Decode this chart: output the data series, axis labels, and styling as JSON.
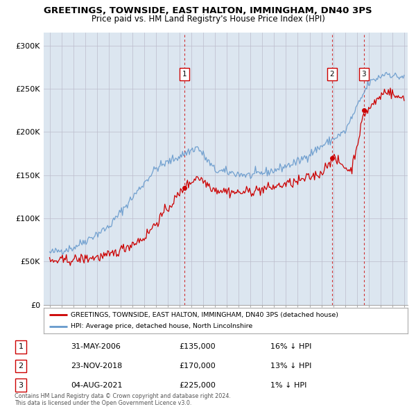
{
  "title": "GREETINGS, TOWNSIDE, EAST HALTON, IMMINGHAM, DN40 3PS",
  "subtitle": "Price paid vs. HM Land Registry's House Price Index (HPI)",
  "ylabel_ticks": [
    "£0",
    "£50K",
    "£100K",
    "£150K",
    "£200K",
    "£250K",
    "£300K"
  ],
  "ytick_vals": [
    0,
    50000,
    100000,
    150000,
    200000,
    250000,
    300000
  ],
  "ylim": [
    0,
    315000
  ],
  "xlim_start": 1994.5,
  "xlim_end": 2025.3,
  "transaction_color": "#cc0000",
  "hpi_color": "#6699cc",
  "vline_color": "#cc0000",
  "grid_color": "#bbbbcc",
  "bg_color": "#dce6f0",
  "plot_bg": "#dce6f0",
  "legend_box_color": "#ffffff",
  "transactions": [
    {
      "date": 2006.41,
      "price": 135000,
      "label": "1"
    },
    {
      "date": 2018.9,
      "price": 170000,
      "label": "2"
    },
    {
      "date": 2021.58,
      "price": 225000,
      "label": "3"
    }
  ],
  "transaction_table": [
    {
      "num": "1",
      "date": "31-MAY-2006",
      "price": "£135,000",
      "note": "16% ↓ HPI"
    },
    {
      "num": "2",
      "date": "23-NOV-2018",
      "price": "£170,000",
      "note": "13% ↓ HPI"
    },
    {
      "num": "3",
      "date": "04-AUG-2021",
      "price": "£225,000",
      "note": "1% ↓ HPI"
    }
  ],
  "footer": "Contains HM Land Registry data © Crown copyright and database right 2024.\nThis data is licensed under the Open Government Licence v3.0.",
  "legend_line1": "GREETINGS, TOWNSIDE, EAST HALTON, IMMINGHAM, DN40 3PS (detached house)",
  "legend_line2": "HPI: Average price, detached house, North Lincolnshire"
}
